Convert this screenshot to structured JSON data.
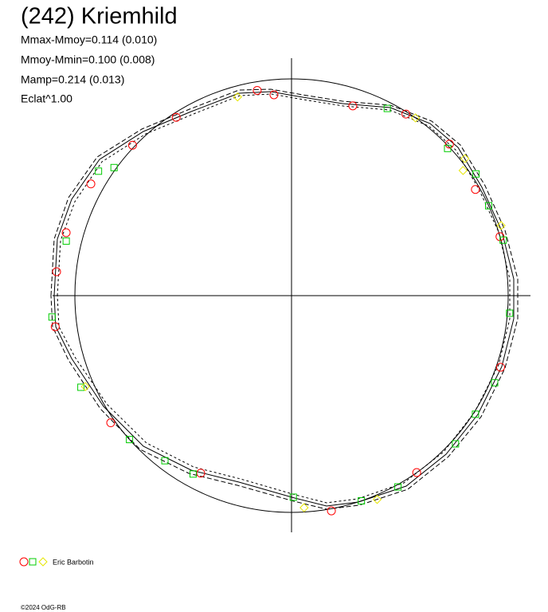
{
  "chart_data": {
    "type": "polar",
    "title": "(242) Kriemhild",
    "annotations": [
      "Mmax-Mmoy=0.114 (0.010)",
      "Mmoy-Mmin=0.100 (0.008)",
      "Mamp=0.214 (0.013)",
      "Eclat^1.00"
    ],
    "legend": "Eric Barbotin",
    "footer": "©2024 OdG-RB",
    "series": [
      {
        "marker": "circle",
        "color": "#ff0000",
        "angle": [
          99.5,
          95.0,
          122.9,
          136.6,
          150.9,
          164.4,
          174.2,
          187.5,
          215.1,
          242.9,
          280.5,
          305.3,
          341.1,
          15.8,
          30.0,
          43.8,
          57.8,
          72.1
        ],
        "values": [
          0.96,
          0.93,
          0.98,
          1.01,
          1.06,
          1.08,
          1.09,
          1.1,
          1.02,
          0.92,
          1.01,
          1.0,
          1.02,
          1.0,
          0.98,
          1.01,
          0.99,
          0.92
        ]
      },
      {
        "marker": "square",
        "color": "#00cc00",
        "angle": [
          62.9,
          43.3,
          33.4,
          24.5,
          14.7,
          355.4,
          336.8,
          327.2,
          317.9,
          299.1,
          288.8,
          270.5,
          241.1,
          232.5,
          221.6,
          203.5,
          185.1,
          166.4,
          147.2,
          144.2
        ],
        "values": [
          0.97,
          0.99,
          1.02,
          1.0,
          1.01,
          1.01,
          1.02,
          1.01,
          1.02,
          1.01,
          1.0,
          0.93,
          0.94,
          0.96,
          1.0,
          1.06,
          1.11,
          1.07,
          1.06,
          1.01
        ]
      },
      {
        "marker": "diamond",
        "color": "#e6e600",
        "angle": [
          105.2,
          55.1,
          38.3,
          36.1,
          18.5,
          273.4,
          292.8,
          203.8
        ],
        "values": [
          0.95,
          1.0,
          1.02,
          0.98,
          1.02,
          0.98,
          1.02,
          1.04
        ]
      }
    ]
  }
}
